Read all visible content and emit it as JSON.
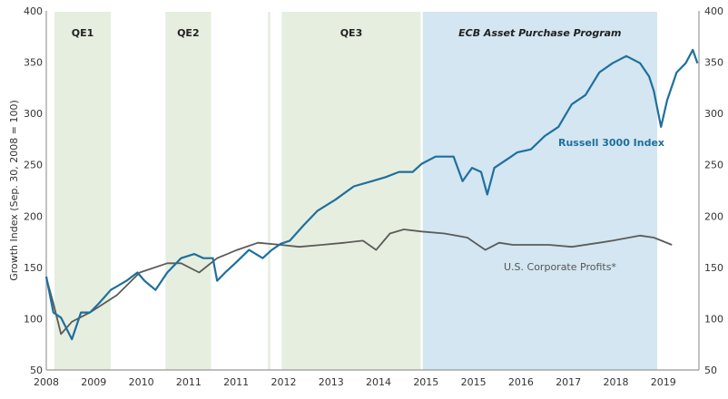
{
  "chart_data": {
    "type": "line",
    "title": "",
    "ylabel": "Growth Index (Sep. 30, 2008 = 100)",
    "ylim": [
      50,
      400
    ],
    "yticks": [
      50,
      100,
      150,
      200,
      250,
      300,
      350,
      400
    ],
    "xlim": [
      0,
      13.75
    ],
    "xtick_labels": [
      "2008",
      "2009",
      "2010",
      "2011",
      "2011",
      "2012",
      "2013",
      "2014",
      "2015",
      "2015",
      "2016",
      "2017",
      "2018",
      "2019"
    ],
    "grid": false,
    "regions": [
      {
        "label": "QE1",
        "start": 0.17,
        "end": 1.36,
        "color": "#e6efdf",
        "italic": false
      },
      {
        "label": "QE2",
        "start": 2.51,
        "end": 3.47,
        "color": "#e6efdf",
        "italic": false
      },
      {
        "label": "",
        "start": 4.67,
        "end": 4.72,
        "color": "#e6efdf",
        "italic": false
      },
      {
        "label": "QE3",
        "start": 4.96,
        "end": 7.89,
        "color": "#e6efdf",
        "italic": false
      },
      {
        "label": "ECB Asset Purchase Program",
        "start": 7.93,
        "end": 12.87,
        "color": "#d3e6f1",
        "italic": true
      }
    ],
    "series": [
      {
        "name": "Russell 3000 Index",
        "color": "#1f6f9e",
        "x": [
          0,
          0.15,
          0.31,
          0.54,
          0.73,
          0.92,
          1.11,
          1.36,
          1.69,
          1.92,
          2.07,
          2.3,
          2.55,
          2.84,
          3.12,
          3.31,
          3.51,
          3.6,
          3.79,
          3.98,
          4.27,
          4.56,
          4.75,
          4.94,
          5.13,
          5.42,
          5.71,
          6.09,
          6.48,
          6.86,
          7.15,
          7.43,
          7.72,
          7.91,
          8.2,
          8.58,
          8.77,
          8.97,
          9.16,
          9.29,
          9.44,
          9.73,
          9.92,
          10.21,
          10.5,
          10.79,
          11.07,
          11.36,
          11.65,
          11.93,
          12.22,
          12.51,
          12.7,
          12.8,
          12.95,
          13.08,
          13.28,
          13.47,
          13.62,
          13.72
        ],
        "values": [
          141,
          106,
          101,
          80,
          106,
          106,
          115,
          128,
          137,
          145,
          137,
          128,
          145,
          159,
          163,
          159,
          159,
          137,
          146,
          154,
          167,
          159,
          167,
          173,
          176,
          191,
          205,
          216,
          229,
          234,
          238,
          243,
          243,
          251,
          258,
          258,
          234,
          247,
          243,
          221,
          247,
          256,
          262,
          265,
          278,
          287,
          309,
          318,
          340,
          349,
          356,
          349,
          336,
          322,
          287,
          313,
          340,
          349,
          362,
          349
        ]
      },
      {
        "name": "U.S. Corporate Profits*",
        "color": "#5b5b5b",
        "x": [
          0,
          0.15,
          0.31,
          0.54,
          0.92,
          1.49,
          1.97,
          2.55,
          2.84,
          3.22,
          3.6,
          4.02,
          4.46,
          4.94,
          5.33,
          5.81,
          6.28,
          6.67,
          6.95,
          7.24,
          7.53,
          7.91,
          8.39,
          8.87,
          9.25,
          9.54,
          9.83,
          10.59,
          11.07,
          11.65,
          11.93,
          12.51,
          12.8,
          13.18
        ],
        "values": [
          140,
          115,
          85,
          97,
          106,
          123,
          145,
          154,
          154,
          145,
          159,
          167,
          174,
          172,
          170,
          172,
          174,
          176,
          167,
          183,
          187,
          185,
          183,
          179,
          167,
          174,
          172,
          172,
          170,
          174,
          176,
          181,
          179,
          172
        ]
      }
    ]
  }
}
